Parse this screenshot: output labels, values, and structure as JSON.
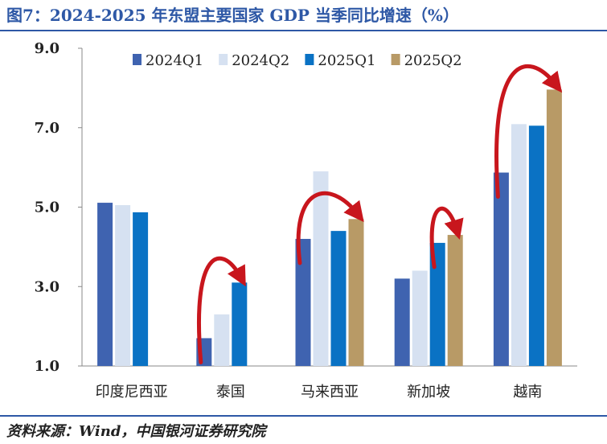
{
  "header": {
    "title": "图7：2024-2025 年东盟主要国家 GDP 当季同比增速（%）"
  },
  "footer": {
    "source": "资料来源：Wind，中国银河证券研究院"
  },
  "chart_data": {
    "type": "bar",
    "title": "图7：2024-2025 年东盟主要国家 GDP 当季同比增速（%）",
    "xlabel": "",
    "ylabel": "",
    "ylim": [
      1.0,
      9.0
    ],
    "yticks": [
      "1.0",
      "3.0",
      "5.0",
      "7.0",
      "9.0"
    ],
    "ytick_values": [
      1,
      3,
      5,
      7,
      9
    ],
    "categories": [
      "印度尼西亚",
      "泰国",
      "马来西亚",
      "新加坡",
      "越南"
    ],
    "series": [
      {
        "name": "2024Q1",
        "color": "#3f63b0",
        "values": [
          5.11,
          1.7,
          4.2,
          3.2,
          5.87
        ]
      },
      {
        "name": "2024Q2",
        "color": "#d6e1f1",
        "values": [
          5.05,
          2.3,
          5.9,
          3.4,
          7.09
        ]
      },
      {
        "name": "2025Q1",
        "color": "#0a72c4",
        "values": [
          4.87,
          3.1,
          4.4,
          4.1,
          7.05
        ]
      },
      {
        "name": "2025Q2",
        "color": "#b89a66",
        "values": [
          null,
          null,
          4.7,
          4.3,
          7.96
        ]
      }
    ],
    "legend_position": "top-center",
    "grid": false,
    "annotations": [
      {
        "type": "curved-arrow",
        "color": "#c8161d",
        "category": "泰国",
        "from_series": "2024Q1",
        "to_series": "2025Q1"
      },
      {
        "type": "curved-arrow",
        "color": "#c8161d",
        "category": "马来西亚",
        "from_series": "2024Q1",
        "to_series": "2025Q2"
      },
      {
        "type": "curved-arrow",
        "color": "#c8161d",
        "category": "新加坡",
        "from_series": "2025Q1",
        "to_series": "2025Q2"
      },
      {
        "type": "curved-arrow",
        "color": "#c8161d",
        "category": "越南",
        "from_series": "2024Q1",
        "to_series": "2025Q2"
      }
    ]
  }
}
